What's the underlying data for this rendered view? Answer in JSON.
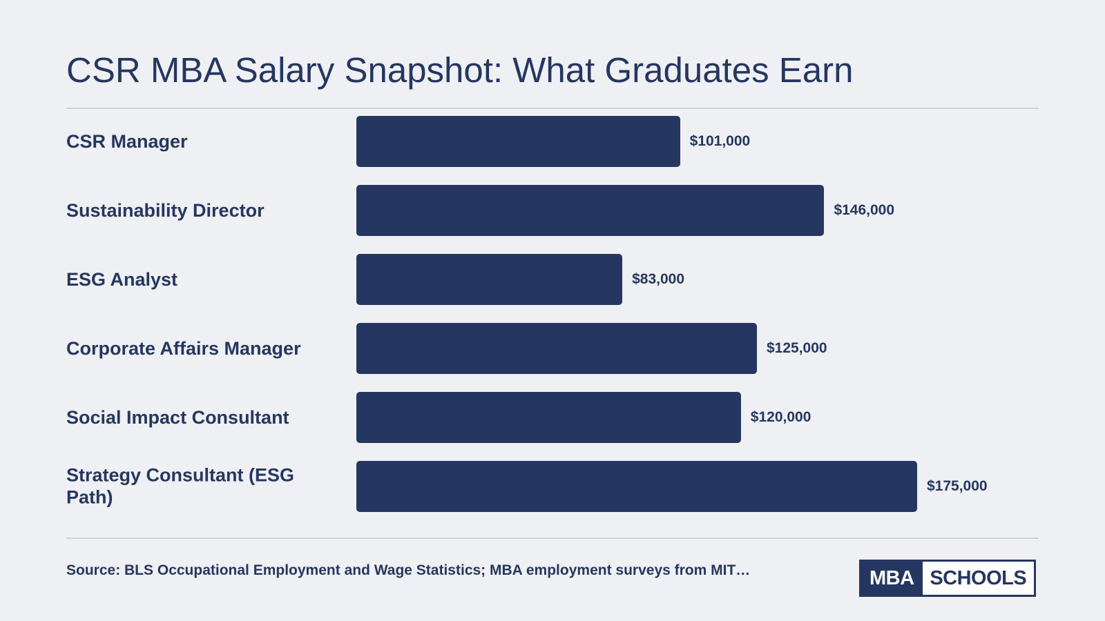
{
  "title": "CSR MBA Salary Snapshot: What Graduates Earn",
  "source": "Source: BLS Occupational Employment and Wage Statistics; MBA employment surveys from MIT…",
  "logo": {
    "left_text": "MBA",
    "right_text": "SCHOOLS"
  },
  "colors": {
    "background": "#eff0f4",
    "bar": "#253760",
    "text": "#253760",
    "rule": "#cfd2d9"
  },
  "chart_data": {
    "type": "bar",
    "orientation": "horizontal",
    "title": "CSR MBA Salary Snapshot: What Graduates Earn",
    "xlabel": "",
    "ylabel": "",
    "grid": false,
    "legend": "none",
    "xlim": [
      0,
      175000
    ],
    "categories": [
      "CSR Manager",
      "Sustainability Director",
      "ESG Analyst",
      "Corporate Affairs Manager",
      "Social Impact Consultant",
      "Strategy Consultant (ESG Path)"
    ],
    "values": [
      101000,
      146000,
      83000,
      125000,
      120000,
      175000
    ],
    "value_labels": [
      "$101,000",
      "$146,000",
      "$83,000",
      "$125,000",
      "$120,000",
      "$175,000"
    ]
  }
}
